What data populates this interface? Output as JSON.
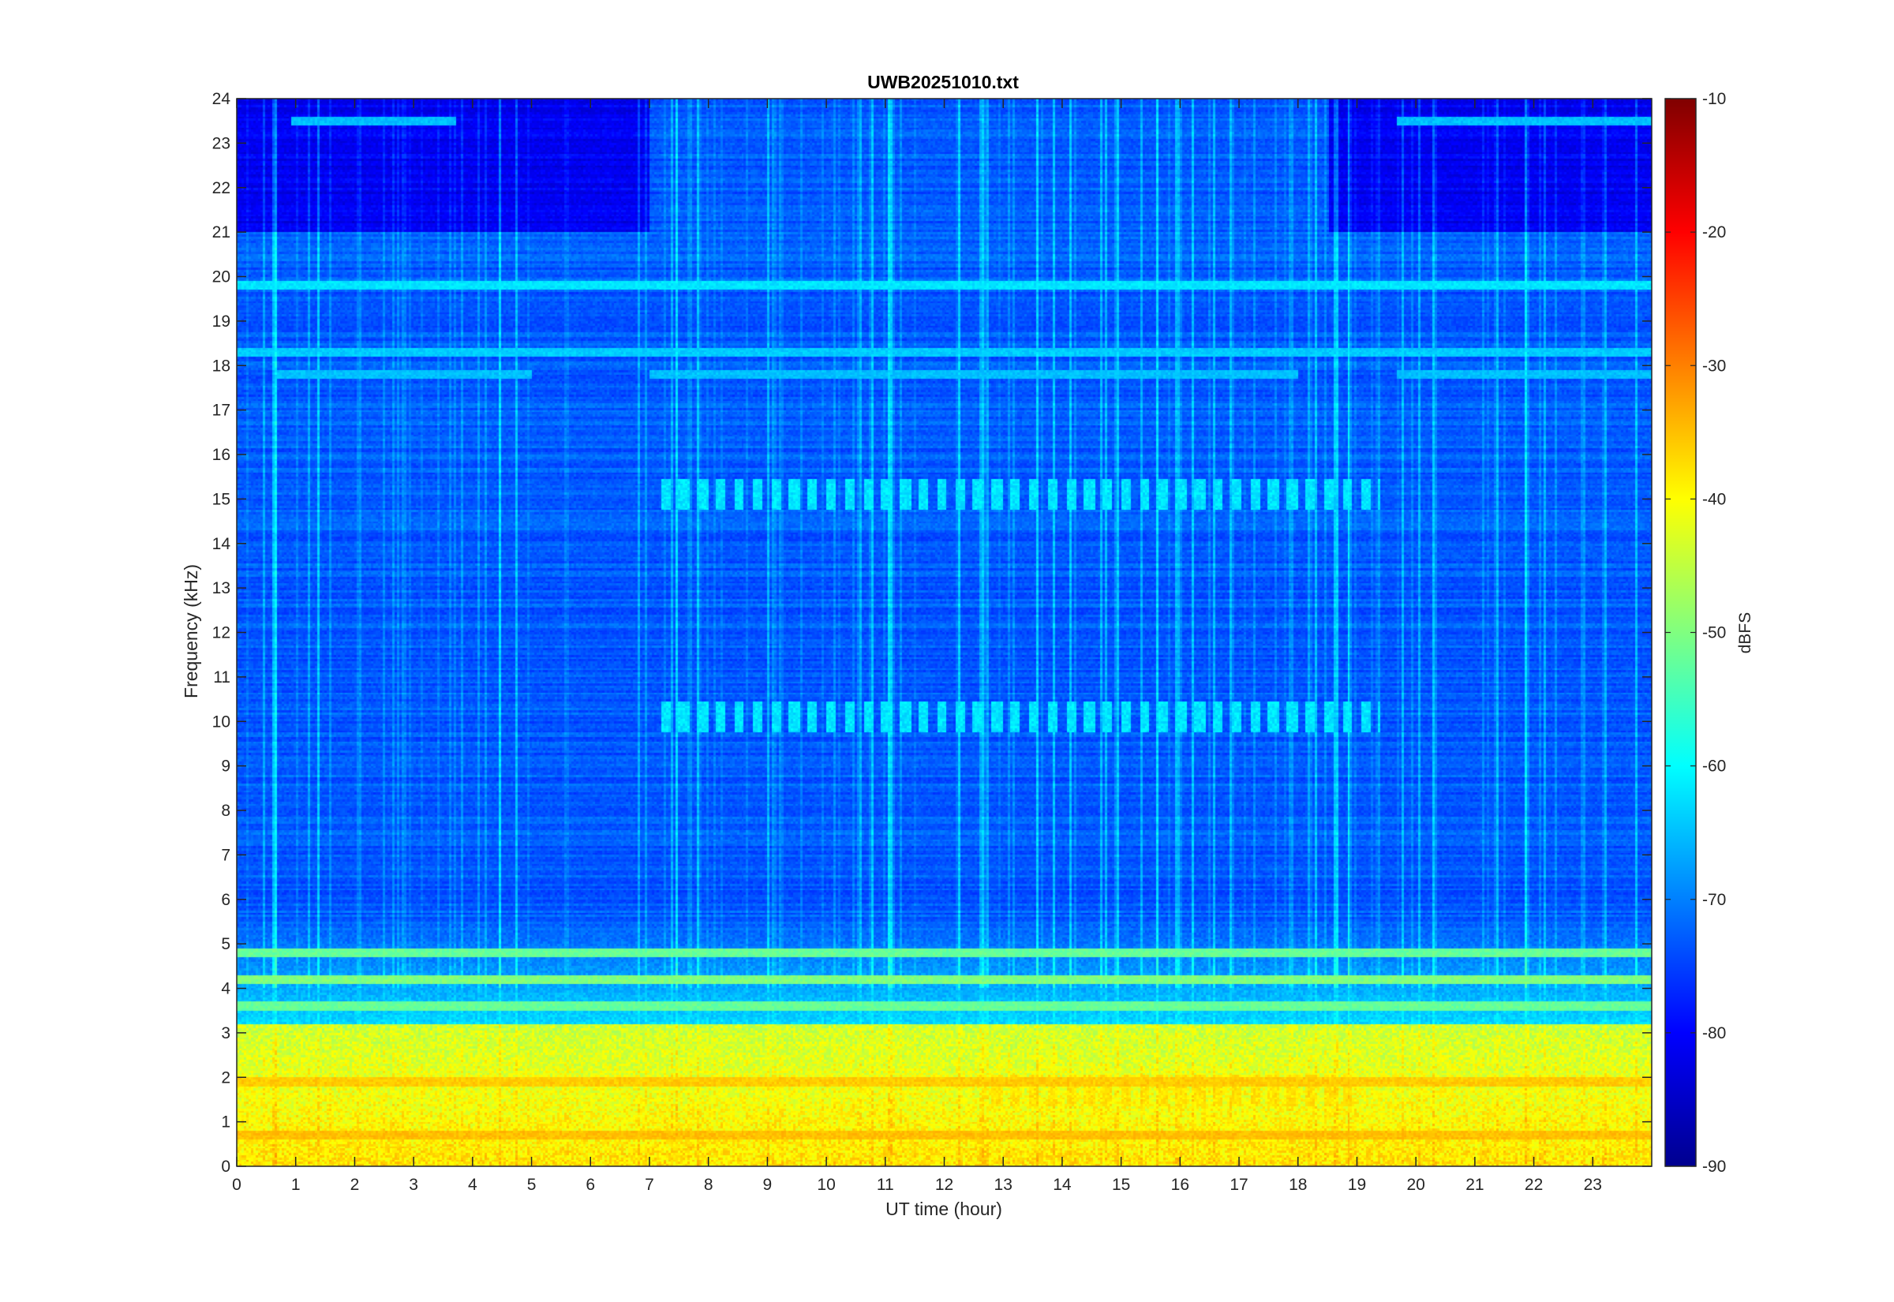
{
  "chart_data": {
    "type": "heatmap",
    "title": "UWB20251010.txt",
    "xlabel": "UT time (hour)",
    "ylabel": "Frequency (kHz)",
    "xlim": [
      0,
      24
    ],
    "ylim": [
      0,
      24
    ],
    "x_ticks": [
      "0",
      "1",
      "2",
      "3",
      "4",
      "5",
      "6",
      "7",
      "8",
      "9",
      "10",
      "11",
      "12",
      "13",
      "14",
      "15",
      "16",
      "17",
      "18",
      "19",
      "20",
      "21",
      "22",
      "23"
    ],
    "y_ticks": [
      "0",
      "1",
      "2",
      "3",
      "4",
      "5",
      "6",
      "7",
      "8",
      "9",
      "10",
      "11",
      "12",
      "13",
      "14",
      "15",
      "16",
      "17",
      "18",
      "19",
      "20",
      "21",
      "22",
      "23",
      "24"
    ],
    "colorbar": {
      "label": "dBFS",
      "range": [
        -90,
        -10
      ],
      "ticks": [
        "-10",
        "-20",
        "-30",
        "-40",
        "-50",
        "-60",
        "-70",
        "-80",
        "-90"
      ],
      "colormap": "jet",
      "stops": [
        "#00008f",
        "#0000ff",
        "#0080ff",
        "#00ffff",
        "#80ff80",
        "#ffff00",
        "#ff8000",
        "#ff0000",
        "#800000"
      ]
    },
    "background_level_dbfs": -73,
    "tones": [
      {
        "freq_khz": 19.8,
        "level_dbfs": -62,
        "t_start": 0,
        "t_end": 24
      },
      {
        "freq_khz": 18.3,
        "level_dbfs": -64,
        "t_start": 0,
        "t_end": 24
      },
      {
        "freq_khz": 23.5,
        "level_dbfs": -65,
        "t_start": 0.9,
        "t_end": 3.7
      },
      {
        "freq_khz": 23.5,
        "level_dbfs": -65,
        "t_start": 19.7,
        "t_end": 24
      },
      {
        "freq_khz": 17.8,
        "level_dbfs": -65,
        "t_start": 0.7,
        "t_end": 5
      },
      {
        "freq_khz": 17.8,
        "level_dbfs": -65,
        "t_start": 7,
        "t_end": 18
      },
      {
        "freq_khz": 17.8,
        "level_dbfs": -65,
        "t_start": 19.7,
        "t_end": 24
      },
      {
        "freq_khz": 4.8,
        "level_dbfs": -52,
        "t_start": 0,
        "t_end": 24
      },
      {
        "freq_khz": 4.2,
        "level_dbfs": -50,
        "t_start": 0,
        "t_end": 24
      },
      {
        "freq_khz": 3.6,
        "level_dbfs": -52,
        "t_start": 0,
        "t_end": 24
      },
      {
        "freq_khz": 1.9,
        "level_dbfs": -36,
        "t_start": 0,
        "t_end": 24
      },
      {
        "freq_khz": 0.7,
        "level_dbfs": -35,
        "t_start": 0,
        "t_end": 24
      }
    ],
    "bursts": [
      {
        "freq_khz": 15.1,
        "level_dbfs": -62,
        "t_start": 7.1,
        "t_end": 19.4
      },
      {
        "freq_khz": 10.1,
        "level_dbfs": -62,
        "t_start": 7.1,
        "t_end": 19.4
      },
      {
        "freq_khz": 1.7,
        "level_dbfs": -38,
        "t_start": 12.8,
        "t_end": 19
      }
    ],
    "low_band": {
      "freq_top_khz": 3.2,
      "level_dbfs": -44
    }
  }
}
